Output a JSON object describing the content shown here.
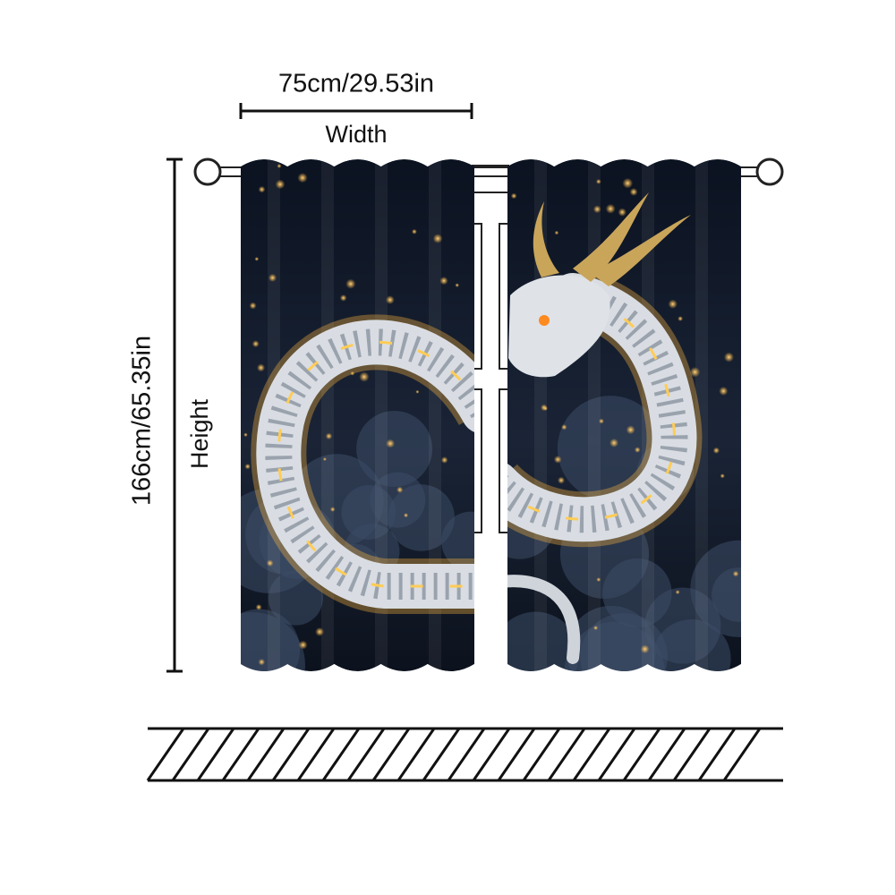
{
  "dimensions": {
    "width": {
      "measure": "75cm/29.53in",
      "label": "Width"
    },
    "height": {
      "measure": "166cm/65.35in",
      "label": "Height"
    }
  }
}
